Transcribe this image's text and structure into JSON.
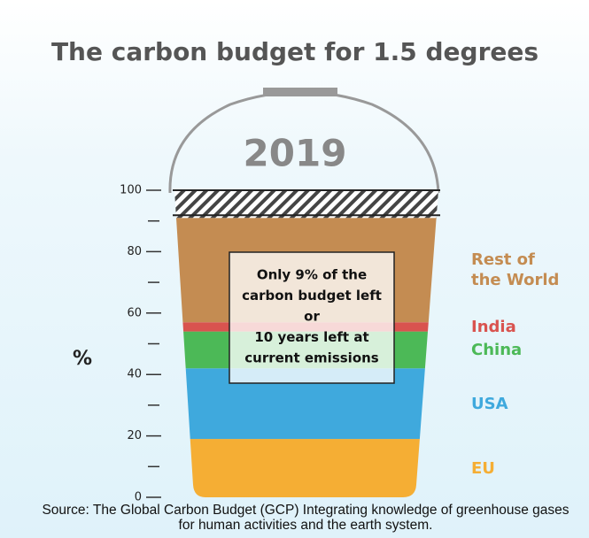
{
  "chart_data": {
    "type": "stacked_bucket",
    "title": "The carbon budget for 1.5 degrees",
    "year": "2019",
    "y_label": "%",
    "series": [
      {
        "name": "EU",
        "color": "#f5ae34",
        "values": [
          19
        ]
      },
      {
        "name": "USA",
        "color": "#3fa9dd",
        "values": [
          23
        ]
      },
      {
        "name": "China",
        "color": "#4cb957",
        "values": [
          12
        ]
      },
      {
        "name": "India",
        "color": "#d9534f",
        "values": [
          3
        ]
      },
      {
        "name": "Rest of the World",
        "color": "#c48c52",
        "values": [
          34
        ]
      }
    ],
    "remaining": 9,
    "ylim": [
      0,
      100
    ],
    "yticks": [
      0,
      20,
      40,
      60,
      80,
      100
    ],
    "minor_yticks": [
      10,
      30,
      50,
      70,
      90
    ],
    "annotation_lines": [
      "Only 9% of the",
      "carbon budget left",
      "or",
      "10 years left at",
      "current emissions"
    ],
    "source": "Source: The Global Carbon Budget (GCP) Integrating knowledge of greenhouse gases for human activities and the earth system."
  }
}
